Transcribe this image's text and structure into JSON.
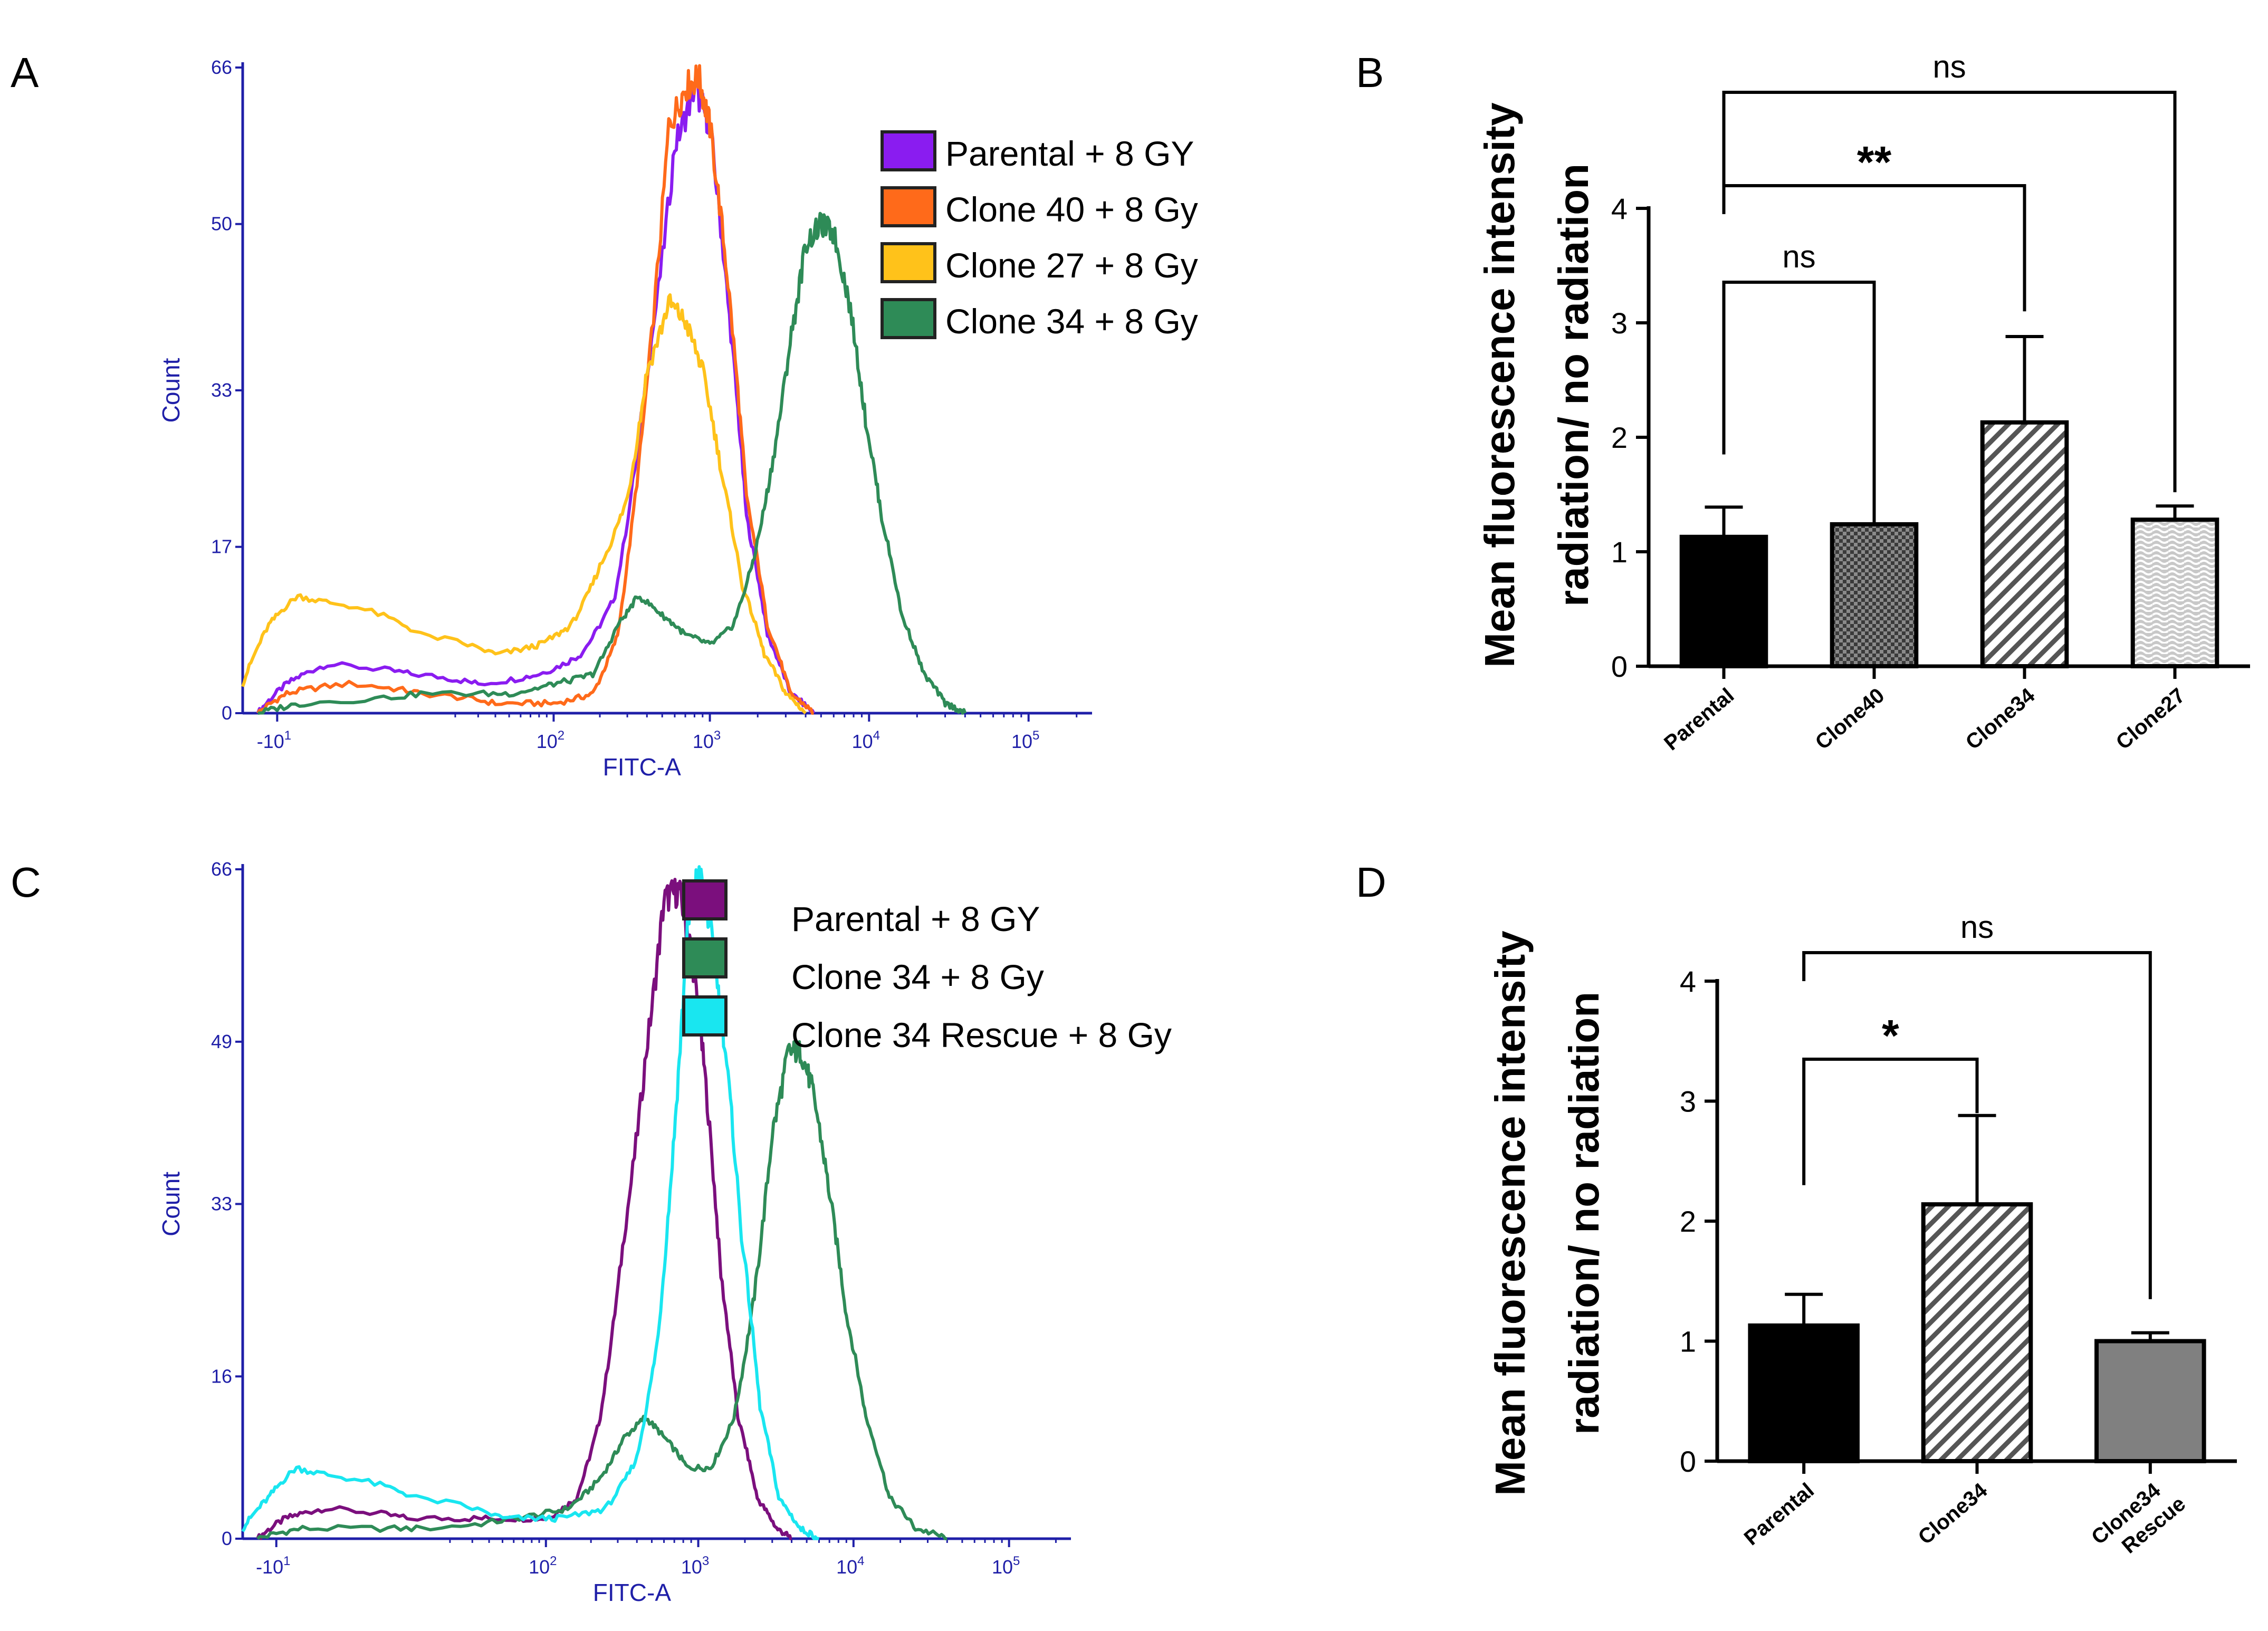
{
  "panel_letters": {
    "a": "A",
    "b": "B",
    "c": "C",
    "d": "D"
  },
  "chart_data": [
    {
      "panel": "A",
      "type": "line",
      "xlabel": "FITC-A",
      "ylabel": "Count",
      "x_scale": "biexponential (log)",
      "xlim": [
        -20,
        250000
      ],
      "ylim": [
        0,
        66
      ],
      "x_ticks": [
        {
          "label": "-10",
          "sup": "1",
          "value": -10
        },
        {
          "label": "10",
          "sup": "2",
          "value": 100
        },
        {
          "label": "10",
          "sup": "3",
          "value": 1000
        },
        {
          "label": "10",
          "sup": "4",
          "value": 10000
        },
        {
          "label": "10",
          "sup": "5",
          "value": 100000
        }
      ],
      "y_ticks": [
        {
          "label": "0",
          "value": 0
        },
        {
          "label": "17",
          "value": 17
        },
        {
          "label": "33",
          "value": 33
        },
        {
          "label": "50",
          "value": 50
        },
        {
          "label": "66",
          "value": 66
        }
      ],
      "legend": [
        {
          "label": "Parental + 8 GY",
          "color": "#8a1cf0"
        },
        {
          "label": "Clone 40 + 8 Gy",
          "color": "#ff6a1a"
        },
        {
          "label": "Clone 27 + 8 Gy",
          "color": "#ffc21a"
        },
        {
          "label": "Clone 34 + 8 Gy",
          "color": "#2e8b57"
        }
      ],
      "series": [
        {
          "name": "Parental + 8 GY",
          "color": "#8a1cf0",
          "points": [
            [
              -15,
              0
            ],
            [
              -8,
              3
            ],
            [
              -2,
              5
            ],
            [
              8,
              4
            ],
            [
              30,
              3
            ],
            [
              80,
              4
            ],
            [
              150,
              6
            ],
            [
              250,
              12
            ],
            [
              400,
              35
            ],
            [
              600,
              58
            ],
            [
              800,
              64
            ],
            [
              1000,
              60
            ],
            [
              1300,
              42
            ],
            [
              1700,
              20
            ],
            [
              2300,
              8
            ],
            [
              3200,
              2
            ],
            [
              4500,
              0
            ]
          ]
        },
        {
          "name": "Clone 40 + 8 Gy",
          "color": "#ff6a1a",
          "points": [
            [
              -15,
              0
            ],
            [
              -8,
              2
            ],
            [
              0,
              3
            ],
            [
              10,
              2
            ],
            [
              40,
              1
            ],
            [
              100,
              1
            ],
            [
              180,
              2
            ],
            [
              260,
              8
            ],
            [
              380,
              30
            ],
            [
              550,
              60
            ],
            [
              700,
              64
            ],
            [
              850,
              65
            ],
            [
              1000,
              60
            ],
            [
              1300,
              44
            ],
            [
              1700,
              22
            ],
            [
              2300,
              9
            ],
            [
              3200,
              2
            ],
            [
              4500,
              0
            ]
          ]
        },
        {
          "name": "Clone 27 + 8 Gy",
          "color": "#ffc21a",
          "points": [
            [
              -20,
              3
            ],
            [
              -12,
              9
            ],
            [
              -6,
              12
            ],
            [
              0,
              11
            ],
            [
              10,
              8
            ],
            [
              40,
              6
            ],
            [
              80,
              7
            ],
            [
              130,
              9
            ],
            [
              200,
              15
            ],
            [
              300,
              22
            ],
            [
              400,
              35
            ],
            [
              550,
              42
            ],
            [
              700,
              40
            ],
            [
              900,
              35
            ],
            [
              1200,
              24
            ],
            [
              1600,
              13
            ],
            [
              2200,
              6
            ],
            [
              3000,
              2
            ],
            [
              4000,
              0
            ]
          ]
        },
        {
          "name": "Clone 34 + 8 Gy",
          "color": "#2e8b57",
          "points": [
            [
              -15,
              0
            ],
            [
              -5,
              1
            ],
            [
              10,
              2
            ],
            [
              50,
              2
            ],
            [
              100,
              3
            ],
            [
              180,
              4
            ],
            [
              260,
              9
            ],
            [
              350,
              12
            ],
            [
              500,
              10
            ],
            [
              700,
              8
            ],
            [
              1000,
              7
            ],
            [
              1400,
              9
            ],
            [
              1900,
              16
            ],
            [
              2500,
              26
            ],
            [
              3200,
              38
            ],
            [
              4000,
              48
            ],
            [
              5000,
              50
            ],
            [
              6000,
              49
            ],
            [
              7500,
              42
            ],
            [
              9500,
              30
            ],
            [
              12000,
              20
            ],
            [
              16000,
              10
            ],
            [
              22000,
              4
            ],
            [
              30000,
              1
            ],
            [
              40000,
              0
            ]
          ]
        }
      ]
    },
    {
      "panel": "B",
      "type": "bar",
      "ylabel": "Mean fluorescence intensity radiation/ no radiation",
      "ylim": [
        0,
        4
      ],
      "y_ticks": [
        "0",
        "1",
        "2",
        "3",
        "4"
      ],
      "categories": [
        "Parental",
        "Clone40",
        "Clone34",
        "Clone27"
      ],
      "values": [
        1.13,
        1.24,
        2.13,
        1.28
      ],
      "errors": [
        0.26,
        0.0,
        0.75,
        0.12
      ],
      "fills": [
        "solid-black",
        "crosshatch",
        "diagonal-stripes",
        "wavy"
      ],
      "significance": [
        {
          "from": "Parental",
          "to": "Clone40",
          "label": "ns"
        },
        {
          "from": "Parental",
          "to": "Clone34",
          "label": "**"
        },
        {
          "from": "Parental",
          "to": "Clone27",
          "label": "ns"
        }
      ]
    },
    {
      "panel": "C",
      "type": "line",
      "xlabel": "FITC-A",
      "ylabel": "Count",
      "x_scale": "biexponential (log)",
      "xlim": [
        -20,
        250000
      ],
      "ylim": [
        0,
        66
      ],
      "x_ticks": [
        {
          "label": "-10",
          "sup": "1",
          "value": -10
        },
        {
          "label": "10",
          "sup": "2",
          "value": 100
        },
        {
          "label": "10",
          "sup": "3",
          "value": 1000
        },
        {
          "label": "10",
          "sup": "4",
          "value": 10000
        },
        {
          "label": "10",
          "sup": "5",
          "value": 100000
        }
      ],
      "y_ticks": [
        {
          "label": "0",
          "value": 0
        },
        {
          "label": "16",
          "value": 16
        },
        {
          "label": "33",
          "value": 33
        },
        {
          "label": "49",
          "value": 49
        },
        {
          "label": "66",
          "value": 66
        }
      ],
      "legend": [
        {
          "label": "Parental + 8 GY",
          "color": "#7b0f7d"
        },
        {
          "label": "Clone 34 + 8 Gy",
          "color": "#2e8b57"
        },
        {
          "label": "Clone 34 Rescue + 8 Gy",
          "color": "#19e6f0"
        }
      ],
      "series": [
        {
          "name": "Parental + 8 GY",
          "color": "#7b0f7d",
          "points": [
            [
              -15,
              0
            ],
            [
              -8,
              2
            ],
            [
              -2,
              3
            ],
            [
              8,
              2
            ],
            [
              40,
              2
            ],
            [
              100,
              2
            ],
            [
              160,
              4
            ],
            [
              230,
              12
            ],
            [
              330,
              30
            ],
            [
              460,
              48
            ],
            [
              600,
              63
            ],
            [
              750,
              64
            ],
            [
              900,
              58
            ],
            [
              1100,
              46
            ],
            [
              1400,
              26
            ],
            [
              1800,
              12
            ],
            [
              2400,
              4
            ],
            [
              3200,
              1
            ],
            [
              4000,
              0
            ]
          ]
        },
        {
          "name": "Clone 34 + 8 Gy",
          "color": "#2e8b57",
          "points": [
            [
              -15,
              0
            ],
            [
              -5,
              1
            ],
            [
              10,
              1
            ],
            [
              60,
              2
            ],
            [
              140,
              3
            ],
            [
              230,
              6
            ],
            [
              330,
              10
            ],
            [
              450,
              12
            ],
            [
              600,
              10
            ],
            [
              850,
              7
            ],
            [
              1200,
              7
            ],
            [
              1700,
              12
            ],
            [
              2300,
              24
            ],
            [
              3000,
              40
            ],
            [
              3800,
              48
            ],
            [
              4600,
              48
            ],
            [
              5500,
              44
            ],
            [
              7000,
              34
            ],
            [
              9000,
              22
            ],
            [
              12000,
              12
            ],
            [
              17000,
              4
            ],
            [
              25000,
              1
            ],
            [
              40000,
              0
            ]
          ]
        },
        {
          "name": "Clone 34 Rescue + 8 Gy",
          "color": "#19e6f0",
          "points": [
            [
              -20,
              1
            ],
            [
              -12,
              4
            ],
            [
              -6,
              7
            ],
            [
              0,
              6
            ],
            [
              10,
              4
            ],
            [
              50,
              2
            ],
            [
              120,
              2
            ],
            [
              250,
              3
            ],
            [
              400,
              8
            ],
            [
              550,
              20
            ],
            [
              700,
              40
            ],
            [
              850,
              60
            ],
            [
              1000,
              66
            ],
            [
              1200,
              60
            ],
            [
              1500,
              48
            ],
            [
              1900,
              30
            ],
            [
              2500,
              13
            ],
            [
              3300,
              4
            ],
            [
              4500,
              1
            ],
            [
              6000,
              0
            ]
          ]
        }
      ]
    },
    {
      "panel": "D",
      "type": "bar",
      "ylabel": "Mean fluorescence intensity radiation/ no radiation",
      "ylim": [
        0,
        4
      ],
      "y_ticks": [
        "0",
        "1",
        "2",
        "3",
        "4"
      ],
      "categories": [
        "Parental",
        "Clone34",
        "Clone34 Rescue"
      ],
      "category_lines": [
        [
          "Parental"
        ],
        [
          "Clone34"
        ],
        [
          "Clone34",
          "Rescue"
        ]
      ],
      "values": [
        1.13,
        2.14,
        1.0
      ],
      "errors": [
        0.26,
        0.74,
        0.07
      ],
      "fills": [
        "solid-black",
        "diagonal-stripes",
        "solid-gray"
      ],
      "significance": [
        {
          "from": "Parental",
          "to": "Clone34",
          "label": "*"
        },
        {
          "from": "Parental",
          "to": "Clone34 Rescue",
          "label": "ns"
        }
      ]
    }
  ]
}
